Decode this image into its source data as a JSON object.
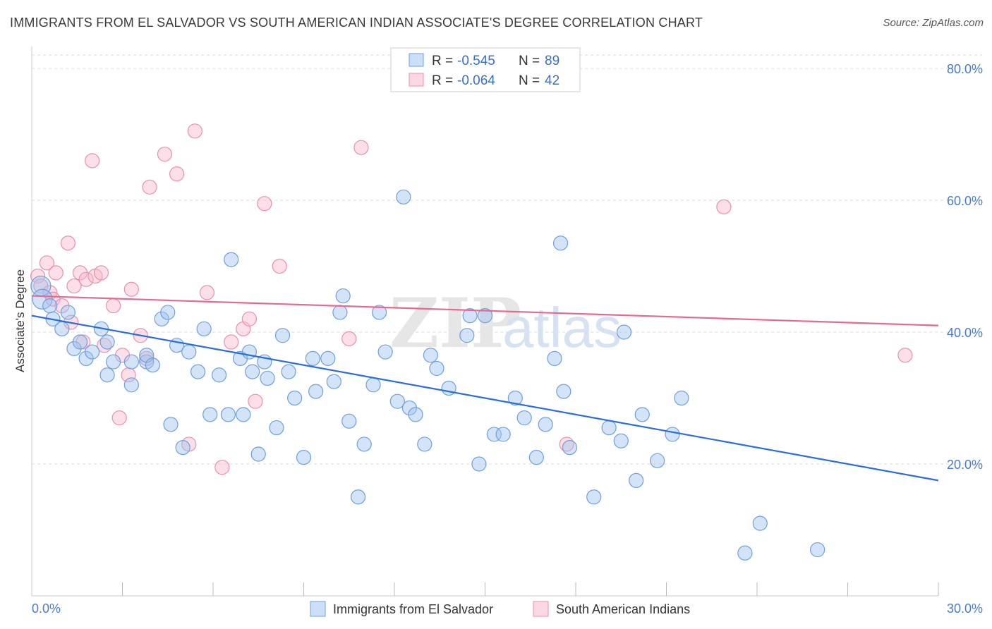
{
  "title": "IMMIGRANTS FROM EL SALVADOR VS SOUTH AMERICAN INDIAN ASSOCIATE'S DEGREE CORRELATION CHART",
  "source": "Source: ZipAtlas.com",
  "watermark": "ZIPatlas",
  "colors": {
    "blue_fill": "rgba(160,196,240,0.45)",
    "blue_stroke": "#6f9fdc",
    "blue_line": "#2a6fd1",
    "pink_fill": "rgba(248,184,204,0.45)",
    "pink_stroke": "#e891ad",
    "pink_line": "#e36a93",
    "axis_text": "#4a7cc9",
    "grid": "#dddddd"
  },
  "legend_box": {
    "rows": [
      {
        "r_label": "R =",
        "r_value": "-0.545",
        "n_label": "N =",
        "n_value": "89"
      },
      {
        "r_label": "R =",
        "r_value": "-0.064",
        "n_label": "N =",
        "n_value": "42"
      }
    ]
  },
  "bottom_legend": [
    "Immigrants from El Salvador",
    "South American Indians"
  ],
  "chart_data": {
    "type": "scatter",
    "xlabel": "",
    "ylabel": "Associate's Degree",
    "xlim": [
      0,
      30
    ],
    "ylim": [
      0,
      80
    ],
    "x_tick_labels": [
      "0.0%",
      "30.0%"
    ],
    "y_ticks": [
      20,
      40,
      60,
      80
    ],
    "y_tick_labels": [
      "20.0%",
      "40.0%",
      "60.0%",
      "80.0%"
    ],
    "x_minor_ticks": [
      3,
      6,
      9,
      12,
      15,
      18,
      21,
      24,
      27,
      30
    ],
    "grid": true,
    "legend_placement": "top-center",
    "series": [
      {
        "name": "Immigrants from El Salvador",
        "color": "blue",
        "trend": {
          "x": [
            0,
            30
          ],
          "y": [
            42.5,
            17.5
          ]
        },
        "points": [
          [
            0.3,
            47,
            14
          ],
          [
            0.35,
            45,
            14
          ],
          [
            0.6,
            44,
            10
          ],
          [
            0.7,
            42,
            10
          ],
          [
            1.0,
            40.5,
            10
          ],
          [
            1.2,
            43,
            10
          ],
          [
            1.4,
            37.5,
            10
          ],
          [
            1.6,
            38.5,
            10
          ],
          [
            1.8,
            36,
            10
          ],
          [
            2.0,
            37,
            10
          ],
          [
            2.3,
            40.5,
            10
          ],
          [
            2.5,
            38.5,
            10
          ],
          [
            2.5,
            33.5,
            10
          ],
          [
            2.7,
            35.5,
            10
          ],
          [
            3.3,
            35.5,
            10
          ],
          [
            3.3,
            32,
            10
          ],
          [
            3.8,
            35.5,
            10
          ],
          [
            3.8,
            36.5,
            10
          ],
          [
            4.0,
            35,
            10
          ],
          [
            4.3,
            42,
            10
          ],
          [
            4.5,
            43,
            10
          ],
          [
            4.6,
            26,
            10
          ],
          [
            4.8,
            38,
            10
          ],
          [
            5.0,
            22.5,
            10
          ],
          [
            5.2,
            37,
            10
          ],
          [
            5.5,
            34,
            10
          ],
          [
            5.7,
            40.5,
            10
          ],
          [
            5.9,
            27.5,
            10
          ],
          [
            6.2,
            33.5,
            10
          ],
          [
            6.6,
            51,
            10
          ],
          [
            6.5,
            27.5,
            10
          ],
          [
            6.9,
            36,
            10
          ],
          [
            7.0,
            27.5,
            10
          ],
          [
            7.2,
            37,
            10
          ],
          [
            7.3,
            34,
            10
          ],
          [
            7.5,
            21.5,
            10
          ],
          [
            7.7,
            35.5,
            10
          ],
          [
            7.8,
            33,
            10
          ],
          [
            8.1,
            25.5,
            10
          ],
          [
            8.3,
            39.5,
            10
          ],
          [
            8.5,
            34,
            10
          ],
          [
            8.7,
            30,
            10
          ],
          [
            9.0,
            21,
            10
          ],
          [
            9.3,
            36,
            10
          ],
          [
            9.4,
            31,
            10
          ],
          [
            9.8,
            36,
            10
          ],
          [
            10.0,
            32.5,
            10
          ],
          [
            10.2,
            43,
            10
          ],
          [
            10.3,
            45.5,
            10
          ],
          [
            10.5,
            26.5,
            10
          ],
          [
            10.8,
            15,
            10
          ],
          [
            11.0,
            23,
            10
          ],
          [
            11.3,
            32,
            10
          ],
          [
            11.5,
            43,
            10
          ],
          [
            11.7,
            37,
            10
          ],
          [
            12.1,
            29.5,
            10
          ],
          [
            12.3,
            60.5,
            10
          ],
          [
            12.5,
            28.5,
            10
          ],
          [
            12.7,
            27.5,
            10
          ],
          [
            13.0,
            23,
            10
          ],
          [
            13.2,
            36.5,
            10
          ],
          [
            13.4,
            34.5,
            10
          ],
          [
            13.8,
            31.5,
            10
          ],
          [
            14.4,
            39.5,
            10
          ],
          [
            14.5,
            42.5,
            10
          ],
          [
            14.8,
            20,
            10
          ],
          [
            15.0,
            42.5,
            10
          ],
          [
            15.3,
            24.5,
            10
          ],
          [
            15.6,
            24.5,
            10
          ],
          [
            16.0,
            30,
            10
          ],
          [
            16.3,
            27,
            10
          ],
          [
            16.7,
            21,
            10
          ],
          [
            17.0,
            26,
            10
          ],
          [
            17.3,
            36,
            10
          ],
          [
            17.5,
            53.5,
            10
          ],
          [
            17.6,
            31,
            10
          ],
          [
            17.8,
            22.5,
            10
          ],
          [
            18.6,
            15,
            10
          ],
          [
            19.1,
            25.5,
            10
          ],
          [
            19.5,
            23.5,
            10
          ],
          [
            19.6,
            40,
            10
          ],
          [
            20.0,
            17.5,
            10
          ],
          [
            20.2,
            27.5,
            10
          ],
          [
            20.7,
            20.5,
            10
          ],
          [
            21.2,
            24.5,
            10
          ],
          [
            21.5,
            30,
            10
          ],
          [
            23.6,
            6.5,
            10
          ],
          [
            24.1,
            11,
            10
          ],
          [
            26.0,
            7,
            10
          ]
        ]
      },
      {
        "name": "South American Indians",
        "color": "pink",
        "trend": {
          "x": [
            0,
            30
          ],
          "y": [
            45.5,
            41
          ]
        },
        "points": [
          [
            0.2,
            48.5,
            10
          ],
          [
            0.3,
            47,
            10
          ],
          [
            0.5,
            50.5,
            10
          ],
          [
            0.6,
            46,
            10
          ],
          [
            0.7,
            45,
            10
          ],
          [
            0.8,
            49,
            10
          ],
          [
            1.0,
            44,
            10
          ],
          [
            1.2,
            53.5,
            10
          ],
          [
            1.3,
            41.5,
            10
          ],
          [
            1.4,
            47,
            10
          ],
          [
            1.6,
            49,
            10
          ],
          [
            1.7,
            38.5,
            10
          ],
          [
            1.8,
            48,
            10
          ],
          [
            2.0,
            66,
            10
          ],
          [
            2.1,
            48.5,
            10
          ],
          [
            2.3,
            49,
            10
          ],
          [
            2.4,
            38,
            10
          ],
          [
            2.7,
            44,
            10
          ],
          [
            2.9,
            27,
            10
          ],
          [
            3.0,
            36.5,
            10
          ],
          [
            3.2,
            33.5,
            10
          ],
          [
            3.3,
            46.5,
            10
          ],
          [
            3.6,
            39.5,
            10
          ],
          [
            3.8,
            36,
            10
          ],
          [
            3.9,
            62,
            10
          ],
          [
            4.4,
            67,
            10
          ],
          [
            4.8,
            64,
            10
          ],
          [
            5.2,
            23,
            10
          ],
          [
            5.4,
            70.5,
            10
          ],
          [
            5.8,
            46,
            10
          ],
          [
            6.3,
            19.5,
            10
          ],
          [
            6.6,
            38.5,
            10
          ],
          [
            7.0,
            40.5,
            10
          ],
          [
            7.2,
            42,
            10
          ],
          [
            7.4,
            29.5,
            10
          ],
          [
            7.7,
            59.5,
            10
          ],
          [
            8.2,
            50,
            10
          ],
          [
            10.5,
            39,
            10
          ],
          [
            10.9,
            68,
            10
          ],
          [
            17.7,
            23,
            10
          ],
          [
            22.9,
            59,
            10
          ],
          [
            28.9,
            36.5,
            10
          ]
        ]
      }
    ]
  }
}
